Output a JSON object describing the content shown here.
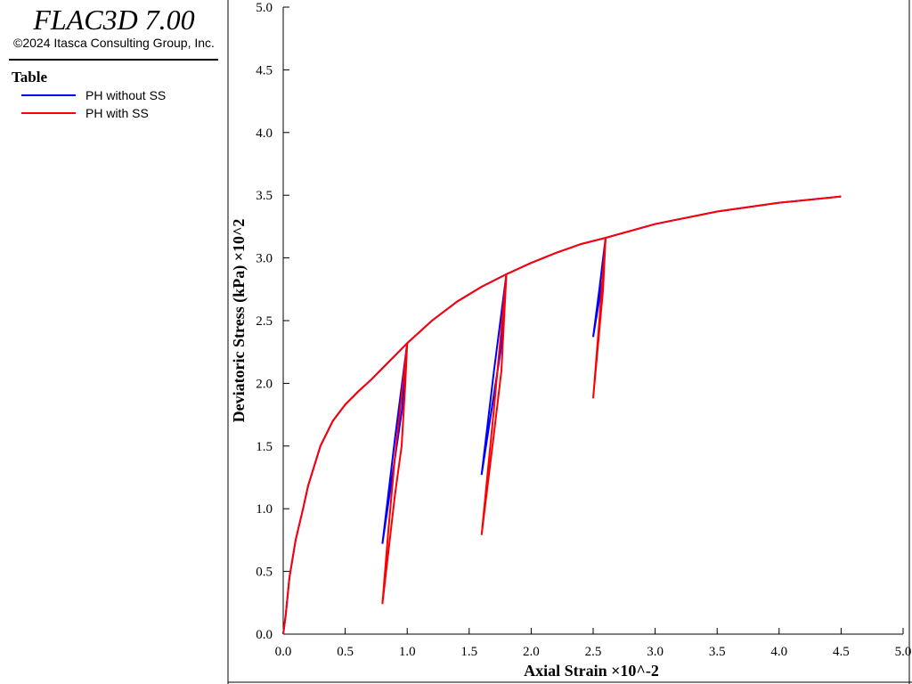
{
  "header": {
    "title": "FLAC3D 7.00",
    "copyright": "©2024 Itasca Consulting Group, Inc.",
    "legend_title": "Table"
  },
  "chart_data": {
    "type": "line",
    "x_label": "Axial Strain ×10^-2",
    "y_label": "Deviatoric Stress (kPa) ×10^2",
    "xlim": [
      0,
      5
    ],
    "ylim": [
      0,
      5
    ],
    "xticks": [
      {
        "value": 0,
        "label": "0.0"
      },
      0.5,
      {
        "value": 1,
        "label": "1.0"
      },
      1.5,
      {
        "value": 2,
        "label": "2.0"
      },
      2.5,
      {
        "value": 3,
        "label": "3.0"
      },
      3.5,
      {
        "value": 4,
        "label": "4.0"
      },
      4.5,
      {
        "value": 5,
        "label": "5.0"
      }
    ],
    "yticks": [
      {
        "value": 0,
        "label": "0.0"
      },
      0.5,
      {
        "value": 1,
        "label": "1.0"
      },
      1.5,
      {
        "value": 2,
        "label": "2.0"
      },
      2.5,
      {
        "value": 3,
        "label": "3.0"
      },
      3.5,
      {
        "value": 4,
        "label": "4.0"
      },
      4.5,
      {
        "value": 5,
        "label": "5.0"
      }
    ],
    "series": [
      {
        "name": "PH without SS",
        "color": "#0000ff",
        "x": [
          0,
          0.02,
          0.05,
          0.1,
          0.16,
          0.2,
          0.3,
          0.4,
          0.5,
          0.6,
          0.71,
          0.8,
          0.9,
          1.0,
          0.9,
          0.8,
          0.96,
          1.0,
          1.2,
          1.4,
          1.6,
          1.8,
          1.7,
          1.6,
          1.76,
          1.8,
          2.0,
          2.2,
          2.4,
          2.6,
          2.55,
          2.5,
          2.58,
          2.6,
          3.0,
          3.5,
          4.0,
          4.5
        ],
        "values": [
          0,
          0.15,
          0.45,
          0.75,
          1.0,
          1.18,
          1.5,
          1.7,
          1.83,
          1.93,
          2.03,
          2.12,
          2.22,
          2.32,
          1.55,
          0.72,
          1.8,
          2.32,
          2.5,
          2.65,
          2.77,
          2.87,
          2.1,
          1.27,
          2.3,
          2.87,
          2.96,
          3.04,
          3.11,
          3.16,
          2.75,
          2.37,
          2.85,
          3.16,
          3.27,
          3.37,
          3.44,
          3.49
        ]
      },
      {
        "name": "PH with SS",
        "color": "#ff0000",
        "x": [
          0,
          0.02,
          0.05,
          0.1,
          0.16,
          0.2,
          0.3,
          0.4,
          0.5,
          0.6,
          0.71,
          0.8,
          0.9,
          1.0,
          0.9,
          0.85,
          0.8,
          0.9,
          0.955,
          0.985,
          1.0,
          1.2,
          1.4,
          1.6,
          1.8,
          1.7,
          1.6,
          1.7,
          1.76,
          1.8,
          2.0,
          2.2,
          2.4,
          2.6,
          2.55,
          2.5,
          2.58,
          2.6,
          3.0,
          3.5,
          4.0,
          4.5
        ],
        "values": [
          0,
          0.15,
          0.45,
          0.75,
          1.0,
          1.18,
          1.5,
          1.7,
          1.83,
          1.93,
          2.03,
          2.12,
          2.22,
          2.32,
          1.4,
          0.85,
          0.24,
          1.1,
          1.5,
          2.0,
          2.32,
          2.5,
          2.65,
          2.77,
          2.87,
          1.8,
          0.79,
          1.6,
          2.1,
          2.87,
          2.96,
          3.04,
          3.11,
          3.16,
          2.5,
          1.88,
          2.75,
          3.16,
          3.27,
          3.37,
          3.44,
          3.49
        ]
      }
    ]
  }
}
